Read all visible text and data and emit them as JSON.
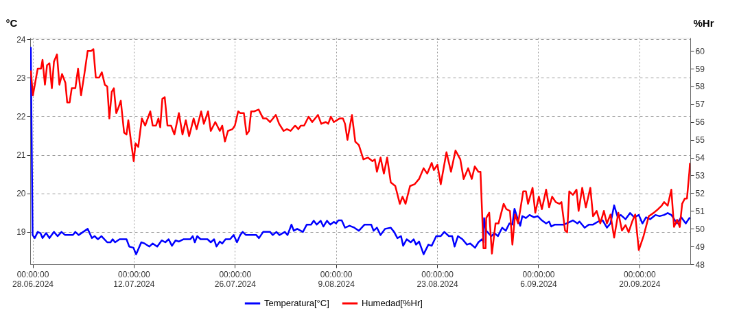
{
  "chart_data": {
    "type": "line",
    "ylabel": "°C",
    "y2label": "%Hr",
    "legend": "bottom",
    "grid": true,
    "line_style": "solid",
    "xlim": [
      "2024-06-27T16:00",
      "2024-09-27T01:00"
    ],
    "xticks": [
      {
        "value": "2024-06-28",
        "label": "00:00:00\n28.06.2024"
      },
      {
        "value": "2024-07-12",
        "label": "00:00:00\n12.07.2024"
      },
      {
        "value": "2024-07-26",
        "label": "00:00:00\n26.07.2024"
      },
      {
        "value": "2024-08-09",
        "label": "00:00:00\n9.08.2024"
      },
      {
        "value": "2024-08-23",
        "label": "00:00:00\n23.08.2024"
      },
      {
        "value": "2024-09-06",
        "label": "00:00:00\n6.09.2024"
      },
      {
        "value": "2024-09-20",
        "label": "00:00:00\n20.09.2024"
      }
    ],
    "ylim": [
      18.16,
      24.04
    ],
    "yticks": [
      19,
      20,
      21,
      22,
      23,
      24
    ],
    "y2lim": [
      48,
      60.74
    ],
    "y2ticks": [
      48,
      49,
      50,
      51,
      52,
      53,
      54,
      55,
      56,
      57,
      58,
      59,
      60
    ],
    "series": [
      {
        "name": "Temperatura[°C]",
        "color": "#0000ff",
        "axis": "y",
        "x": [
          "2024-06-27T18:00",
          "2024-06-28T00:00",
          "2024-06-28T07:00",
          "2024-06-28T17:00",
          "2024-06-29T02:00",
          "2024-06-29T09:00",
          "2024-06-29T21:00",
          "2024-06-30T08:00",
          "2024-06-30T23:00",
          "2024-07-01T11:00",
          "2024-07-02T00:00",
          "2024-07-02T12:00",
          "2024-07-03T14:00",
          "2024-07-03T22:00",
          "2024-07-04T09:00",
          "2024-07-05T00:00",
          "2024-07-05T15:00",
          "2024-07-06T05:00",
          "2024-07-06T14:00",
          "2024-07-07T01:00",
          "2024-07-07T13:00",
          "2024-07-08T08:00",
          "2024-07-08T19:00",
          "2024-07-09T02:00",
          "2024-07-09T10:00",
          "2024-07-10T01:00",
          "2024-07-11T00:00",
          "2024-07-11T09:00",
          "2024-07-11T23:00",
          "2024-07-12T08:00",
          "2024-07-13T01:00",
          "2024-07-13T12:00",
          "2024-07-14T04:00",
          "2024-07-14T15:00",
          "2024-07-15T06:00",
          "2024-07-15T21:00",
          "2024-07-16T09:00",
          "2024-07-16T20:00",
          "2024-07-17T07:00",
          "2024-07-17T19:00",
          "2024-07-18T06:00",
          "2024-07-18T21:00",
          "2024-07-19T20:00",
          "2024-07-20T04:00",
          "2024-07-20T11:00",
          "2024-07-20T19:00",
          "2024-07-21T06:00",
          "2024-07-22T05:00",
          "2024-07-22T16:00",
          "2024-07-23T03:00",
          "2024-07-23T11:00",
          "2024-07-23T22:00",
          "2024-07-24T06:00",
          "2024-07-24T17:00",
          "2024-07-25T08:00",
          "2024-07-25T20:00",
          "2024-07-26T07:00",
          "2024-07-26T18:00",
          "2024-07-27T02:00",
          "2024-07-27T13:00",
          "2024-07-28T23:00",
          "2024-07-29T08:00",
          "2024-07-29T22:00",
          "2024-07-30T21:00",
          "2024-07-31T06:00",
          "2024-07-31T18:00",
          "2024-08-01T04:00",
          "2024-08-01T22:00",
          "2024-08-02T07:00",
          "2024-08-02T20:00",
          "2024-08-03T04:00",
          "2024-08-03T15:00",
          "2024-08-04T10:00",
          "2024-08-04T23:00",
          "2024-08-05T13:00",
          "2024-08-05T22:00",
          "2024-08-06T08:00",
          "2024-08-06T21:00",
          "2024-08-07T06:00",
          "2024-08-07T18:00",
          "2024-08-08T05:00",
          "2024-08-08T17:00",
          "2024-08-09T00:00",
          "2024-08-09T08:00",
          "2024-08-09T19:00",
          "2024-08-10T06:00",
          "2024-08-10T21:00",
          "2024-08-11T13:00",
          "2024-08-12T04:00",
          "2024-08-12T23:00",
          "2024-08-13T21:00",
          "2024-08-14T05:00",
          "2024-08-14T16:00",
          "2024-08-15T04:00",
          "2024-08-15T19:00",
          "2024-08-16T14:00",
          "2024-08-17T01:00",
          "2024-08-17T12:00",
          "2024-08-18T00:00",
          "2024-08-18T07:00",
          "2024-08-18T19:00",
          "2024-08-19T08:00",
          "2024-08-19T18:00",
          "2024-08-20T02:00",
          "2024-08-20T12:00",
          "2024-08-21T03:00",
          "2024-08-21T19:00",
          "2024-08-22T06:00",
          "2024-08-22T21:00",
          "2024-08-23T12:00",
          "2024-08-24T00:00",
          "2024-08-24T15:00",
          "2024-08-25T02:00",
          "2024-08-25T10:00",
          "2024-08-25T21:00",
          "2024-08-26T12:00",
          "2024-08-27T03:00",
          "2024-08-27T14:00",
          "2024-08-28T06:00",
          "2024-08-28T17:00",
          "2024-08-29T05:00",
          "2024-08-29T10:00",
          "2024-08-29T12:00",
          "2024-08-29T19:00",
          "2024-08-30T12:00",
          "2024-08-30T22:00",
          "2024-08-31T10:00",
          "2024-09-01T00:00",
          "2024-09-01T12:00",
          "2024-09-02T00:00",
          "2024-09-02T10:00",
          "2024-09-02T17:00",
          "2024-09-03T02:00",
          "2024-09-03T12:00",
          "2024-09-03T19:00",
          "2024-09-04T07:00",
          "2024-09-04T19:00",
          "2024-09-05T10:00",
          "2024-09-05T22:00",
          "2024-09-06T12:00",
          "2024-09-07T02:00",
          "2024-09-07T12:00",
          "2024-09-07T19:00",
          "2024-09-08T07:00",
          "2024-09-09T14:00",
          "2024-09-10T19:00",
          "2024-09-11T10:00",
          "2024-09-11T17:00",
          "2024-09-12T10:00",
          "2024-09-13T00:00",
          "2024-09-13T14:00",
          "2024-09-14T07:00",
          "2024-09-14T22:00",
          "2024-09-15T12:00",
          "2024-09-16T00:00",
          "2024-09-16T12:00",
          "2024-09-17T00:00",
          "2024-09-17T10:00",
          "2024-09-18T02:00",
          "2024-09-18T17:00",
          "2024-09-19T07:00",
          "2024-09-19T22:00",
          "2024-09-20T10:00",
          "2024-09-20T22:00",
          "2024-09-21T12:00",
          "2024-09-22T05:00",
          "2024-09-22T19:00",
          "2024-09-23T10:00",
          "2024-09-23T22:00",
          "2024-09-24T10:00",
          "2024-09-25T05:00",
          "2024-09-25T19:00",
          "2024-09-26T10:00",
          "2024-09-26T22:00",
          "2024-09-27T00:00"
        ],
        "values": [
          23.8,
          18.92,
          18.84,
          19.0,
          18.97,
          18.84,
          18.97,
          18.84,
          19.0,
          18.89,
          19.0,
          18.92,
          18.92,
          19.0,
          18.92,
          19.0,
          19.08,
          18.84,
          18.89,
          18.81,
          18.89,
          18.73,
          18.73,
          18.81,
          18.73,
          18.81,
          18.81,
          18.62,
          18.59,
          18.42,
          18.73,
          18.7,
          18.62,
          18.7,
          18.62,
          18.78,
          18.73,
          18.81,
          18.64,
          18.78,
          18.75,
          18.81,
          18.81,
          18.89,
          18.73,
          18.89,
          18.81,
          18.81,
          18.73,
          18.81,
          18.62,
          18.75,
          18.7,
          18.81,
          18.81,
          18.92,
          18.73,
          18.92,
          19.0,
          18.92,
          18.92,
          18.84,
          19.0,
          19.0,
          18.92,
          19.0,
          18.92,
          19.0,
          18.92,
          19.19,
          19.03,
          19.08,
          19.0,
          19.19,
          19.19,
          19.29,
          19.19,
          19.29,
          19.14,
          19.29,
          19.19,
          19.26,
          19.22,
          19.3,
          19.3,
          19.11,
          19.16,
          19.11,
          19.03,
          19.19,
          19.19,
          19.03,
          19.11,
          18.92,
          19.08,
          19.11,
          19.0,
          18.84,
          18.89,
          18.64,
          18.81,
          18.73,
          18.81,
          18.67,
          18.75,
          18.42,
          18.67,
          18.64,
          18.89,
          18.89,
          19.0,
          18.89,
          18.89,
          18.62,
          18.89,
          18.81,
          18.67,
          18.7,
          18.59,
          18.73,
          18.81,
          18.73,
          19.36,
          19.03,
          18.89,
          18.97,
          18.89,
          19.11,
          19.03,
          19.22,
          19.19,
          19.6,
          19.38,
          19.16,
          19.41,
          19.36,
          19.44,
          19.38,
          19.41,
          19.3,
          19.22,
          19.27,
          19.14,
          19.19,
          19.19,
          19.3,
          19.22,
          19.27,
          19.11,
          19.19,
          19.19,
          19.27,
          19.3,
          19.11,
          19.22,
          19.69,
          19.38,
          19.44,
          19.33,
          19.49,
          19.38,
          19.44,
          19.22,
          19.38,
          19.33,
          19.44,
          19.41,
          19.44,
          19.49,
          19.44,
          19.22,
          19.38,
          19.22,
          19.36,
          19.33
        ]
      },
      {
        "name": "Humedad[%Hr]",
        "color": "#ff0000",
        "axis": "y2",
        "x": [
          "2024-06-27T18:00",
          "2024-06-28T01:00",
          "2024-06-28T17:00",
          "2024-06-29T04:00",
          "2024-06-29T09:00",
          "2024-06-29T17:00",
          "2024-06-30T00:00",
          "2024-06-30T08:00",
          "2024-06-30T16:00",
          "2024-06-30T23:00",
          "2024-07-01T09:00",
          "2024-07-01T17:00",
          "2024-07-02T02:00",
          "2024-07-02T13:00",
          "2024-07-02T19:00",
          "2024-07-03T03:00",
          "2024-07-03T10:00",
          "2024-07-03T22:00",
          "2024-07-04T07:00",
          "2024-07-04T17:00",
          "2024-07-05T04:00",
          "2024-07-05T15:00",
          "2024-07-06T03:00",
          "2024-07-06T10:00",
          "2024-07-06T18:00",
          "2024-07-07T05:00",
          "2024-07-07T14:00",
          "2024-07-08T00:00",
          "2024-07-08T08:00",
          "2024-07-08T15:00",
          "2024-07-08T23:00",
          "2024-07-09T06:00",
          "2024-07-09T14:00",
          "2024-07-09T21:00",
          "2024-07-10T05:00",
          "2024-07-10T16:00",
          "2024-07-11T00:00",
          "2024-07-11T06:00",
          "2024-07-11T15:00",
          "2024-07-12T00:00",
          "2024-07-12T06:00",
          "2024-07-12T15:00",
          "2024-07-13T03:00",
          "2024-07-13T14:00",
          "2024-07-14T07:00",
          "2024-07-14T15:00",
          "2024-07-15T02:00",
          "2024-07-15T10:00",
          "2024-07-15T16:00",
          "2024-07-15T23:00",
          "2024-07-16T07:00",
          "2024-07-16T16:00",
          "2024-07-17T04:00",
          "2024-07-17T15:00",
          "2024-07-18T06:00",
          "2024-07-18T18:00",
          "2024-07-19T05:00",
          "2024-07-19T16:00",
          "2024-07-20T07:00",
          "2024-07-20T17:00",
          "2024-07-21T08:00",
          "2024-07-21T17:00",
          "2024-07-22T07:00",
          "2024-07-22T16:00",
          "2024-07-23T07:00",
          "2024-07-23T22:00",
          "2024-07-24T06:00",
          "2024-07-24T15:00",
          "2024-07-25T01:00",
          "2024-07-25T16:00",
          "2024-07-26T00:00",
          "2024-07-26T11:00",
          "2024-07-26T18:00",
          "2024-07-27T06:00",
          "2024-07-27T15:00",
          "2024-07-27T23:00",
          "2024-07-28T06:00",
          "2024-07-28T16:00",
          "2024-07-29T07:00",
          "2024-07-29T22:00",
          "2024-07-30T09:00",
          "2024-07-30T21:00",
          "2024-07-31T16:00",
          "2024-08-01T03:00",
          "2024-08-01T18:00",
          "2024-08-02T05:00",
          "2024-08-02T17:00",
          "2024-08-03T08:00",
          "2024-08-03T19:00",
          "2024-08-04T03:00",
          "2024-08-04T14:00",
          "2024-08-05T05:00",
          "2024-08-05T17:00",
          "2024-08-06T12:00",
          "2024-08-06T23:00",
          "2024-08-07T14:00",
          "2024-08-07T22:00",
          "2024-08-08T07:00",
          "2024-08-08T17:00",
          "2024-08-09T12:00",
          "2024-08-09T23:00",
          "2024-08-10T06:00",
          "2024-08-10T14:00",
          "2024-08-11T05:00",
          "2024-08-11T16:00",
          "2024-08-12T04:00",
          "2024-08-12T19:00",
          "2024-08-13T10:00",
          "2024-08-14T01:00",
          "2024-08-14T09:00",
          "2024-08-14T16:00",
          "2024-08-15T04:00",
          "2024-08-15T15:00",
          "2024-08-16T02:00",
          "2024-08-16T14:00",
          "2024-08-17T05:00",
          "2024-08-17T20:00",
          "2024-08-18T05:00",
          "2024-08-18T15:00",
          "2024-08-19T06:00",
          "2024-08-19T21:00",
          "2024-08-20T12:00",
          "2024-08-21T03:00",
          "2024-08-21T15:00",
          "2024-08-22T06:00",
          "2024-08-22T13:00",
          "2024-08-23T01:00",
          "2024-08-23T12:00",
          "2024-08-24T07:00",
          "2024-08-24T22:00",
          "2024-08-25T13:00",
          "2024-08-26T05:00",
          "2024-08-26T16:00",
          "2024-08-27T07:00",
          "2024-08-27T19:00",
          "2024-08-28T05:00",
          "2024-08-28T17:00",
          "2024-08-29T00:00",
          "2024-08-29T10:00",
          "2024-08-29T17:00",
          "2024-08-29T19:00",
          "2024-08-30T05:00",
          "2024-08-30T14:00",
          "2024-08-31T02:00",
          "2024-08-31T12:00",
          "2024-09-01T05:00",
          "2024-09-01T14:00",
          "2024-09-02T02:00",
          "2024-09-02T10:00",
          "2024-09-02T19:00",
          "2024-09-03T05:00",
          "2024-09-03T22:00",
          "2024-09-04T07:00",
          "2024-09-04T14:00",
          "2024-09-05T05:00",
          "2024-09-05T14:00",
          "2024-09-06T02:00",
          "2024-09-06T12:00",
          "2024-09-07T02:00",
          "2024-09-07T12:00",
          "2024-09-07T22:00",
          "2024-09-08T10:00",
          "2024-09-08T22:00",
          "2024-09-09T05:00",
          "2024-09-09T17:00",
          "2024-09-10T00:00",
          "2024-09-10T07:00",
          "2024-09-10T19:00",
          "2024-09-11T07:00",
          "2024-09-11T14:00",
          "2024-09-12T02:00",
          "2024-09-12T14:00",
          "2024-09-13T05:00",
          "2024-09-13T14:00",
          "2024-09-14T02:00",
          "2024-09-14T14:00",
          "2024-09-15T02:00",
          "2024-09-15T12:00",
          "2024-09-16T00:00",
          "2024-09-16T12:00",
          "2024-09-17T02:00",
          "2024-09-17T14:00",
          "2024-09-18T02:00",
          "2024-09-18T12:00",
          "2024-09-19T00:00",
          "2024-09-19T10:00",
          "2024-09-19T22:00",
          "2024-09-20T14:00",
          "2024-09-21T07:00",
          "2024-09-22T00:00",
          "2024-09-22T14:00",
          "2024-09-23T02:00",
          "2024-09-23T10:00",
          "2024-09-23T22:00",
          "2024-09-24T10:00",
          "2024-09-24T19:00",
          "2024-09-25T05:00",
          "2024-09-25T14:00",
          "2024-09-25T22:00",
          "2024-09-26T07:00",
          "2024-09-26T14:00",
          "2024-09-26T22:00",
          "2024-09-27T00:00"
        ],
        "values": [
          58.9,
          57.5,
          59.0,
          59.0,
          59.5,
          58.1,
          59.2,
          59.3,
          57.9,
          59.4,
          59.8,
          58.1,
          58.7,
          58.2,
          57.1,
          57.1,
          57.9,
          57.9,
          59.0,
          57.5,
          58.7,
          60.0,
          60.0,
          60.1,
          58.5,
          58.5,
          58.8,
          58.1,
          58.0,
          56.2,
          57.7,
          57.9,
          56.5,
          56.8,
          57.2,
          55.4,
          55.3,
          56.1,
          54.9,
          53.8,
          54.8,
          54.6,
          56.2,
          55.8,
          56.6,
          55.8,
          55.8,
          56.2,
          55.7,
          57.3,
          57.4,
          55.8,
          55.8,
          55.3,
          56.5,
          55.3,
          56.1,
          55.2,
          56.2,
          55.6,
          56.6,
          55.9,
          56.6,
          55.5,
          56.0,
          55.5,
          55.8,
          54.9,
          55.5,
          55.6,
          55.8,
          56.6,
          56.5,
          56.5,
          55.3,
          55.5,
          56.6,
          56.6,
          56.7,
          56.2,
          56.2,
          56.0,
          56.4,
          55.9,
          55.5,
          55.6,
          55.5,
          55.8,
          55.6,
          55.8,
          55.8,
          56.3,
          56.0,
          56.4,
          55.9,
          56.0,
          55.9,
          56.3,
          56.0,
          56.2,
          56.2,
          55.9,
          55.0,
          56.4,
          54.9,
          54.7,
          53.9,
          54.0,
          53.8,
          53.9,
          53.2,
          54.0,
          53.1,
          54.0,
          52.6,
          52.4,
          51.4,
          51.8,
          51.4,
          52.4,
          52.5,
          52.8,
          53.4,
          53.1,
          53.7,
          53.3,
          53.6,
          52.5,
          54.3,
          53.2,
          54.4,
          53.9,
          52.8,
          53.4,
          52.8,
          53.5,
          53.2,
          53.2,
          48.9,
          48.9,
          50.6,
          50.9,
          48.6,
          50.3,
          50.3,
          51.4,
          51.1,
          51.0,
          49.1,
          50.8,
          50.3,
          52.1,
          52.1,
          51.4,
          52.3,
          50.9,
          51.8,
          51.1,
          52.2,
          51.2,
          51.8,
          51.5,
          51.4,
          51.5,
          49.9,
          49.8,
          52.1,
          51.9,
          52.2,
          51.0,
          52.3,
          51.2,
          52.3,
          50.7,
          51.0,
          50.3,
          51.0,
          50.3,
          50.8,
          49.5,
          50.9,
          49.9,
          50.2,
          49.8,
          50.4,
          50.8,
          48.8,
          49.6,
          50.7,
          50.9,
          51.1,
          51.3,
          51.5,
          51.3,
          52.2,
          50.1,
          50.5,
          50.1,
          51.4,
          51.7,
          51.7,
          53.2,
          53.7
        ]
      }
    ]
  }
}
